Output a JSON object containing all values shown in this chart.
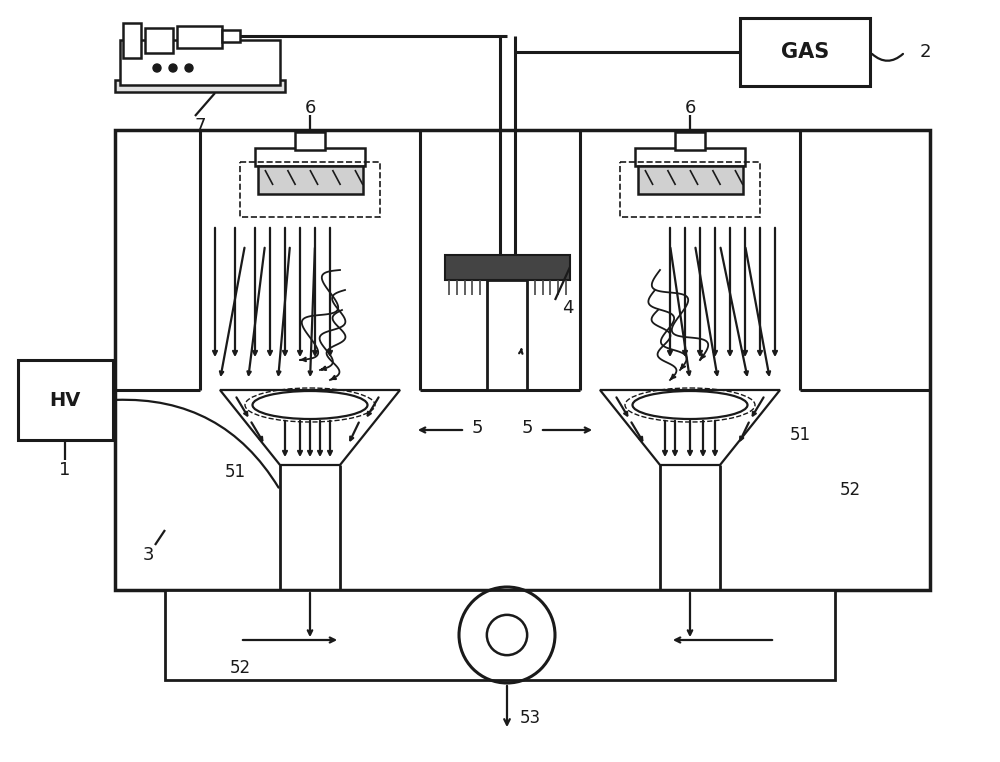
{
  "bg_color": "#ffffff",
  "line_color": "#1a1a1a",
  "lw": 1.6,
  "fig_w": 10.0,
  "fig_h": 7.62,
  "dpi": 100
}
